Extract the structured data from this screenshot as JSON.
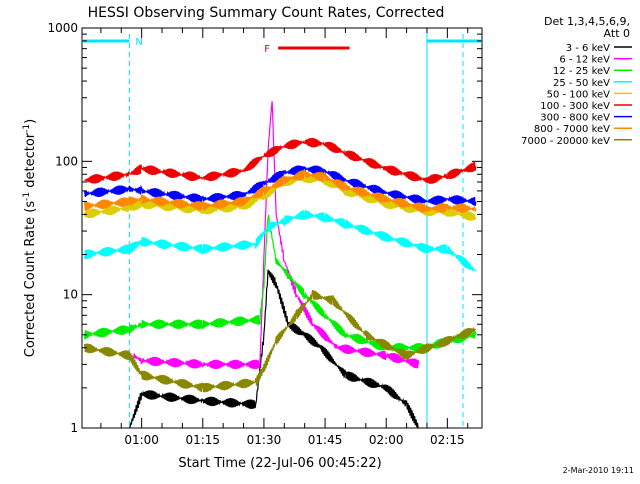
{
  "chart_data": {
    "type": "line",
    "title": "HESSI Observing Summary Count Rates, Corrected",
    "xlabel": "Start Time (22-Jul-06 00:45:22)",
    "ylabel_main": "Corrected Count Rate (s",
    "ylabel_sup1": "-1",
    "ylabel_mid": " detector",
    "ylabel_sup2": "-1",
    "ylabel_end": ")",
    "yscale": "log",
    "ylim": [
      1,
      1000
    ],
    "xlim": [
      "00:45:22",
      "02:23:30"
    ],
    "x_ticks": [
      "01:00",
      "01:15",
      "01:30",
      "01:45",
      "02:00",
      "02:15"
    ],
    "y_ticks": [
      "1",
      "10",
      "100",
      "1000"
    ],
    "grid": false,
    "legend_position": "right",
    "legend_header": [
      "Det 1,3,4,5,6,9,",
      "Att 0"
    ],
    "flag_labels": {
      "night": "N",
      "flare": "F"
    },
    "timestamp": "2-Mar-2010 19:11",
    "colors": {
      "night_markers": "#00e5ff",
      "flare_flag": "#ee0000"
    },
    "night_intervals": [
      [
        "00:45:22",
        "00:57:00"
      ],
      [
        "02:10:00",
        "02:23:30"
      ]
    ],
    "flare_interval": [
      "01:33:30",
      "01:51:00"
    ],
    "series": [
      {
        "name": "3 - 6 keV",
        "color": "#000000",
        "x": [
          "00:57",
          "01:00",
          "01:15",
          "01:28",
          "01:30",
          "01:31",
          "01:33",
          "01:36",
          "01:40",
          "01:44",
          "01:50",
          "02:00",
          "02:05",
          "02:08"
        ],
        "y": [
          1.0,
          1.8,
          1.6,
          1.5,
          5,
          15,
          12,
          6,
          5,
          4,
          2.5,
          2,
          1.5,
          1.0
        ]
      },
      {
        "name": "6 - 12 keV",
        "color": "#ff00ff",
        "x": [
          "00:58",
          "01:00",
          "01:15",
          "01:29",
          "01:31",
          "01:32",
          "01:33",
          "01:35",
          "01:38",
          "01:42",
          "01:48",
          "02:00",
          "02:08"
        ],
        "y": [
          3.5,
          3.2,
          3.0,
          3.0,
          120,
          290,
          40,
          18,
          10,
          6,
          4,
          3.5,
          3.0
        ]
      },
      {
        "name": "12 - 25 keV",
        "color": "#00ee00",
        "x": [
          "00:46",
          "00:57",
          "01:00",
          "01:15",
          "01:29",
          "01:30",
          "01:31",
          "01:33",
          "01:36",
          "01:40",
          "01:45",
          "01:50",
          "02:00",
          "02:10",
          "02:15",
          "02:22"
        ],
        "y": [
          5,
          5.5,
          6,
          6,
          6.5,
          12,
          40,
          18,
          14,
          10,
          7,
          5,
          4,
          4,
          4.5,
          5
        ]
      },
      {
        "name": "25 - 50 keV",
        "color": "#00ffff",
        "x": [
          "00:46",
          "00:57",
          "01:00",
          "01:15",
          "01:28",
          "01:31",
          "01:35",
          "01:40",
          "01:45",
          "01:50",
          "02:00",
          "02:10",
          "02:15",
          "02:22"
        ],
        "y": [
          20,
          22,
          25,
          22,
          24,
          32,
          36,
          40,
          38,
          34,
          27,
          22,
          22,
          15
        ]
      },
      {
        "name": "50 - 100 keV",
        "color": "#ddcc00",
        "x": [
          "00:46",
          "00:57",
          "01:00",
          "01:15",
          "01:25",
          "01:30",
          "01:35",
          "01:40",
          "01:45",
          "01:50",
          "02:00",
          "02:10",
          "02:15",
          "02:22"
        ],
        "y": [
          40,
          45,
          48,
          43,
          46,
          55,
          70,
          75,
          72,
          60,
          48,
          42,
          42,
          38
        ]
      },
      {
        "name": "100 - 300 keV",
        "color": "#ee0000",
        "x": [
          "00:46",
          "00:57",
          "01:00",
          "01:15",
          "01:25",
          "01:30",
          "01:35",
          "01:40",
          "01:45",
          "01:50",
          "02:00",
          "02:10",
          "02:15",
          "02:22"
        ],
        "y": [
          72,
          80,
          88,
          75,
          85,
          110,
          130,
          140,
          135,
          115,
          88,
          72,
          78,
          92
        ]
      },
      {
        "name": "300 - 800 keV",
        "color": "#0000ff",
        "x": [
          "00:46",
          "00:57",
          "01:00",
          "01:15",
          "01:25",
          "01:30",
          "01:35",
          "01:40",
          "01:45",
          "01:50",
          "02:00",
          "02:10",
          "02:15",
          "02:22"
        ],
        "y": [
          57,
          62,
          60,
          52,
          56,
          68,
          82,
          88,
          84,
          72,
          58,
          50,
          52,
          50
        ]
      },
      {
        "name": "800 - 7000 keV",
        "color": "#ff8800",
        "x": [
          "00:46",
          "00:57",
          "01:00",
          "01:15",
          "01:25",
          "01:30",
          "01:35",
          "01:40",
          "01:45",
          "01:50",
          "02:00",
          "02:10",
          "02:15",
          "02:22"
        ],
        "y": [
          46,
          50,
          52,
          46,
          50,
          60,
          72,
          80,
          76,
          64,
          52,
          44,
          45,
          44
        ]
      },
      {
        "name": "7000 - 20000 keV",
        "color": "#888800",
        "x": [
          "00:46",
          "00:57",
          "01:00",
          "01:15",
          "01:28",
          "01:30",
          "01:33",
          "01:38",
          "01:42",
          "01:47",
          "01:55",
          "02:05",
          "02:15",
          "02:22"
        ],
        "y": [
          4.0,
          3.5,
          2.5,
          2.0,
          2.2,
          2.8,
          4.5,
          7,
          10,
          9,
          5,
          3.5,
          4.5,
          5.5
        ]
      }
    ]
  }
}
